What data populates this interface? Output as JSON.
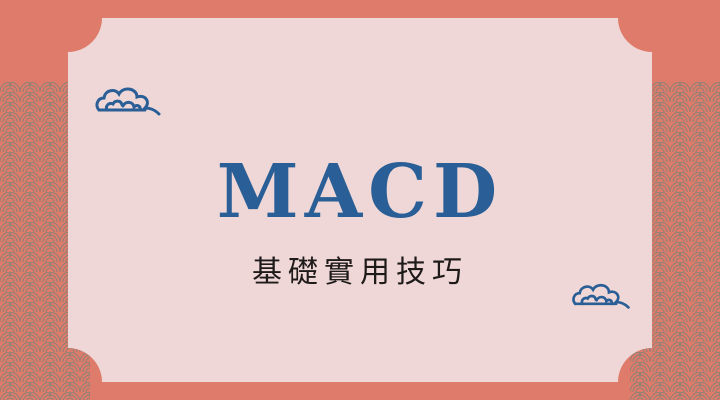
{
  "title": "MACD",
  "subtitle": "基礎實用技巧",
  "colors": {
    "frame": "#df7b6b",
    "card": "#eed7d6",
    "title": "#2a5e96",
    "subtitle": "#1f1a1a",
    "pattern_line": "#8b8276"
  },
  "decorations": {
    "cloud_icon": "auspicious-cloud-icon",
    "pattern": "seigaiha-wave-pattern"
  }
}
